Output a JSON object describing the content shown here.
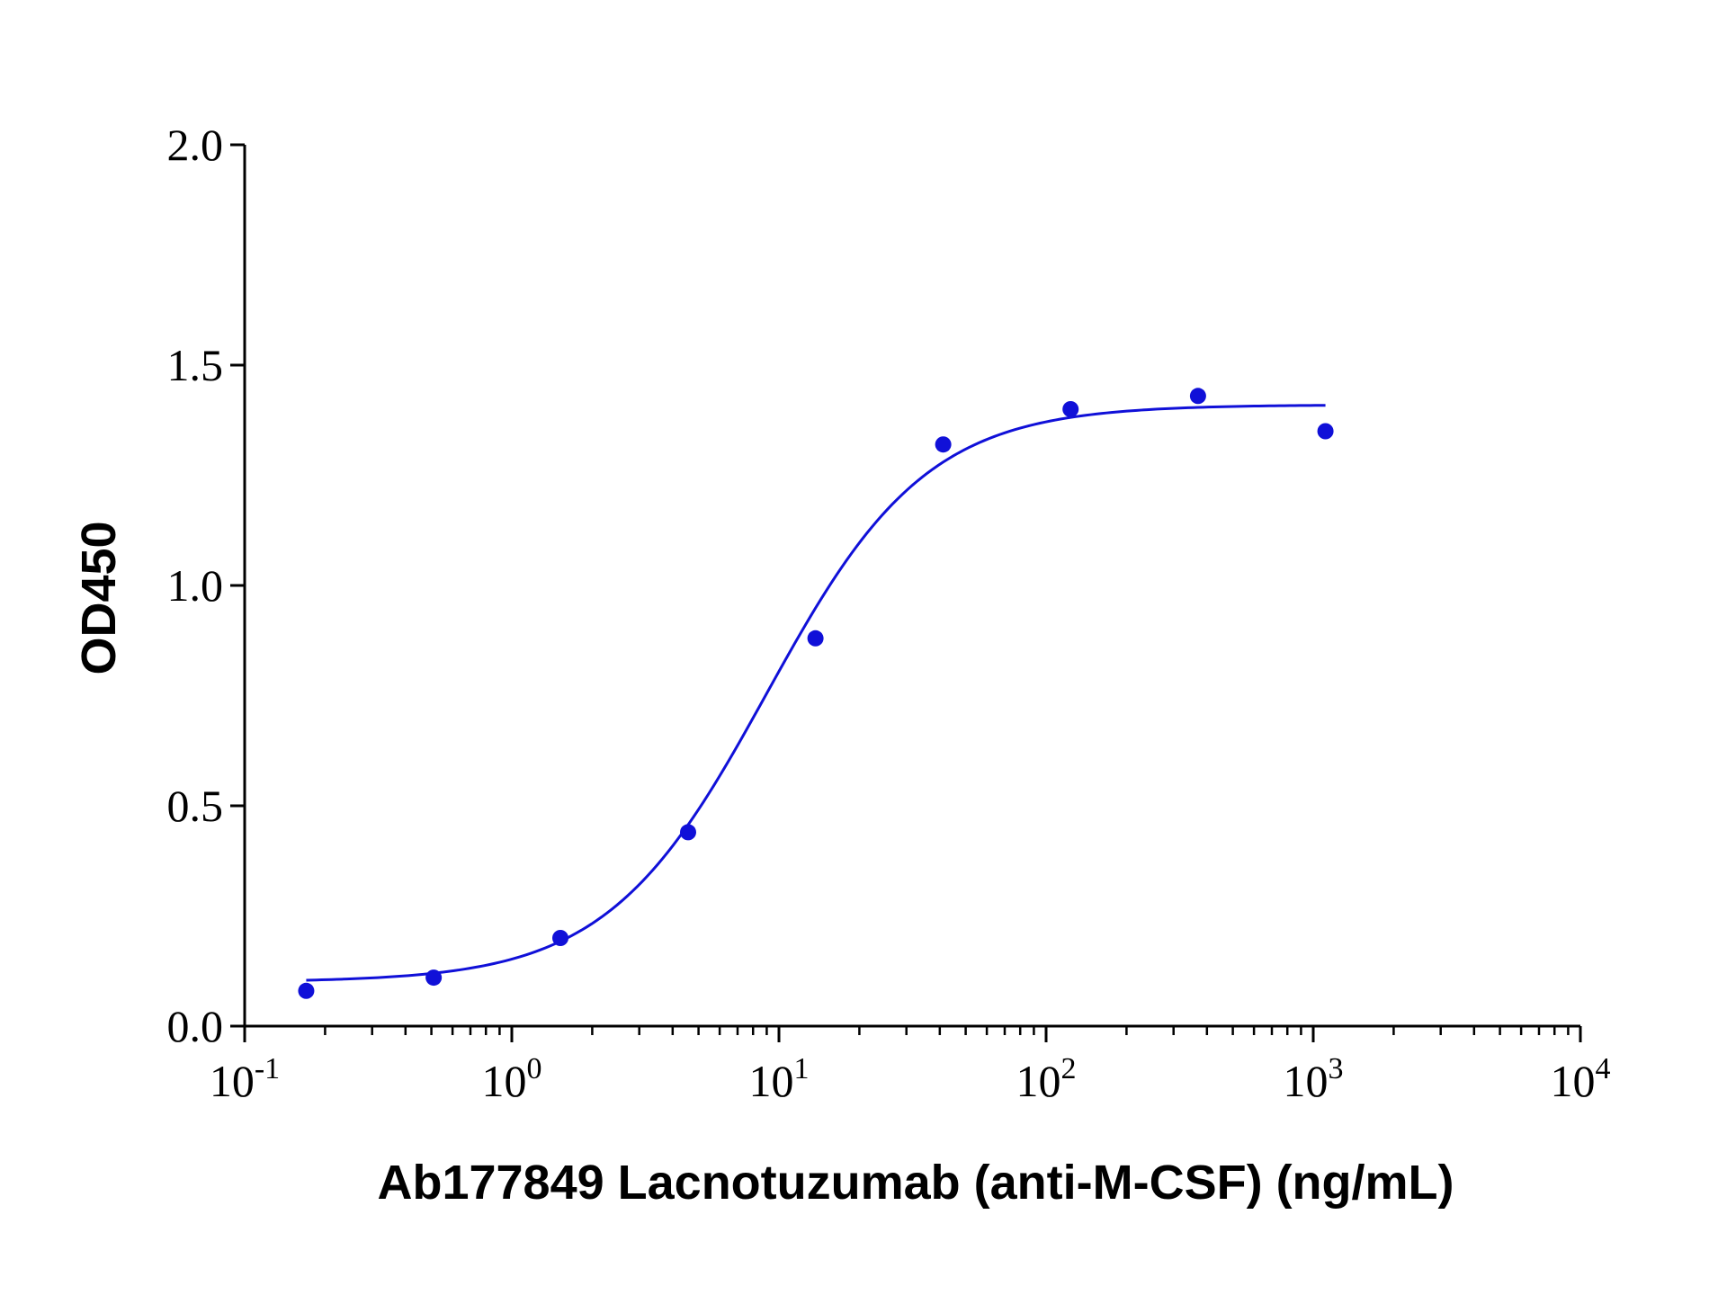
{
  "colors": {
    "series": "#1010d8",
    "axis": "#000000",
    "background": "#ffffff"
  },
  "chart_data": {
    "type": "scatter",
    "title": "",
    "xlabel": "Ab177849 Lacnotuzumab (anti-M-CSF) (ng/mL)",
    "ylabel": "OD450",
    "xscale": "log",
    "xlim": [
      0.1,
      10000
    ],
    "ylim": [
      0.0,
      2.0
    ],
    "grid": false,
    "legend": "none",
    "y_ticks": [
      "0.0",
      "0.5",
      "1.0",
      "1.5",
      "2.0"
    ],
    "x_ticks": [
      {
        "base": "10",
        "exp": "-1"
      },
      {
        "base": "10",
        "exp": "0"
      },
      {
        "base": "10",
        "exp": "1"
      },
      {
        "base": "10",
        "exp": "2"
      },
      {
        "base": "10",
        "exp": "3"
      },
      {
        "base": "10",
        "exp": "4"
      }
    ],
    "series": [
      {
        "kind": "points",
        "x": [
          0.17,
          0.51,
          1.52,
          4.57,
          13.7,
          41.2,
          123.5,
          370.4,
          1111
        ],
        "y": [
          0.08,
          0.11,
          0.2,
          0.44,
          0.88,
          1.32,
          1.4,
          1.43,
          1.35
        ]
      },
      {
        "kind": "fit-curve",
        "model": "4PL",
        "bottom": 0.1,
        "top": 1.41,
        "ec50": 9.0,
        "hill": 1.45,
        "x_range": [
          0.17,
          1111
        ]
      }
    ]
  }
}
